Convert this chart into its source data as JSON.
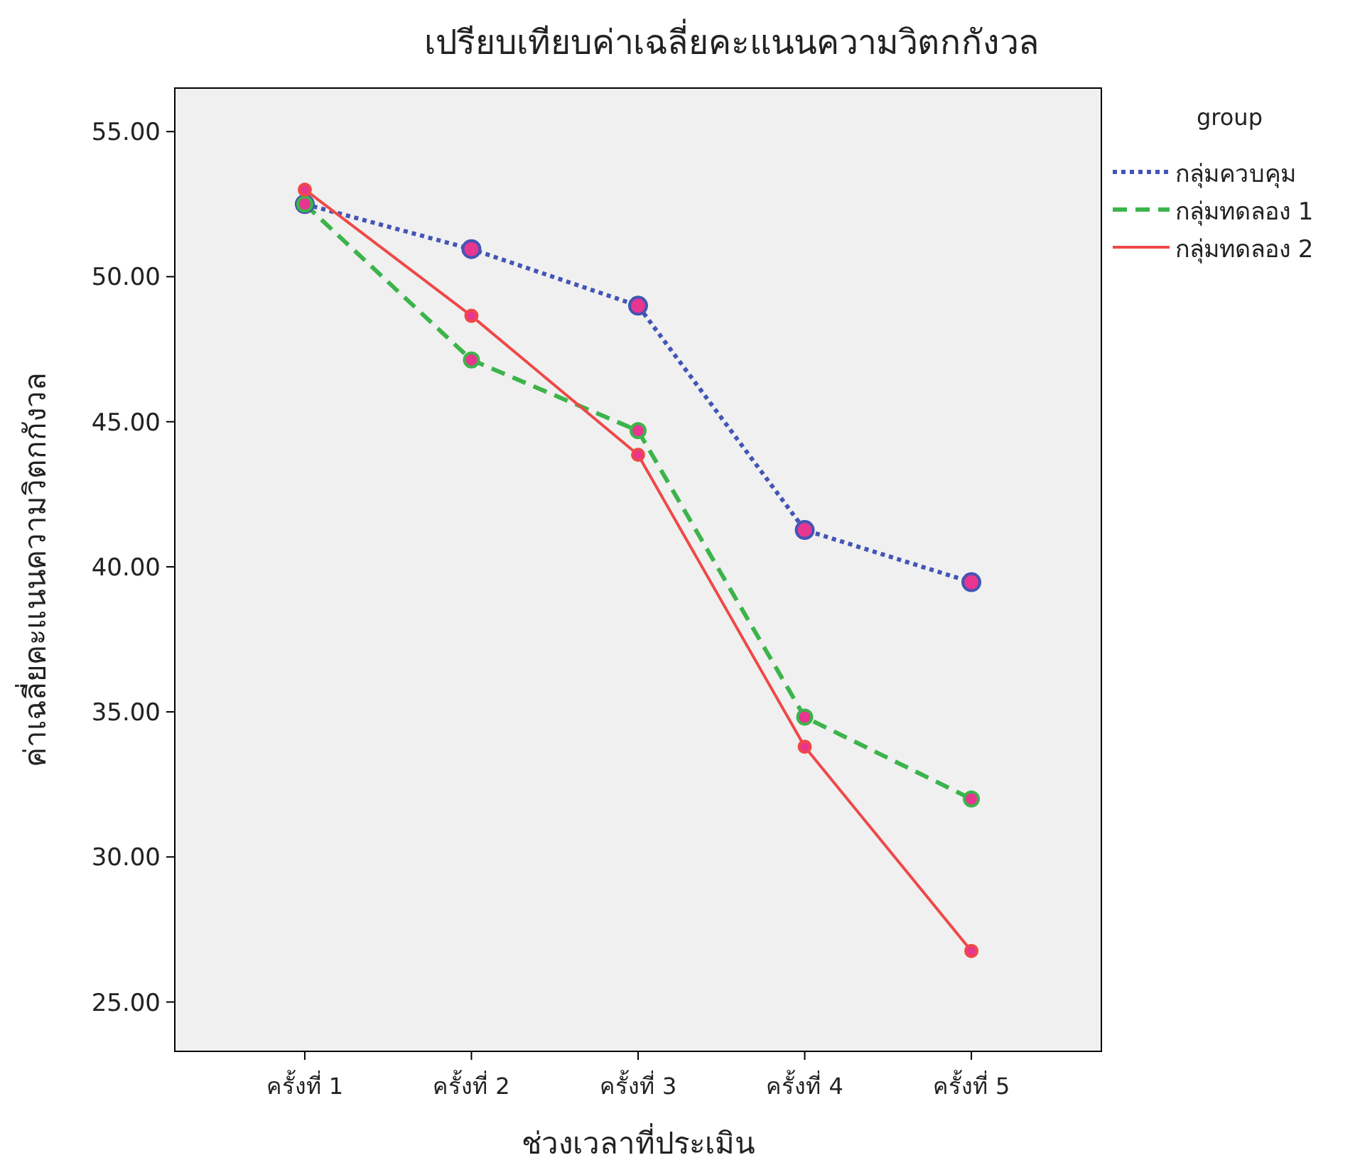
{
  "chart_data": {
    "type": "line",
    "title": "เปรียบเทียบค่าเฉลี่ยคะแนนความวิตกกังวล",
    "xlabel": "ช่วงเวลาที่ประเมิน",
    "ylabel": "ค่าเฉลี่ยคะแนนความวิตกกังวล",
    "legend_title": "group",
    "categories": [
      "ครั้งที่ 1",
      "ครั้งที่ 2",
      "ครั้งที่ 3",
      "ครั้งที่ 4",
      "ครั้งที่ 5"
    ],
    "series": [
      {
        "name": "กลุ่มควบคุม",
        "color": "#4355b5",
        "line_style": "dotted",
        "values": [
          52.5,
          50.95,
          49.0,
          41.27,
          39.47
        ]
      },
      {
        "name": "กลุ่มทดลอง 1",
        "color": "#3cb44b",
        "line_style": "dashed",
        "values": [
          52.5,
          47.13,
          44.69,
          34.82,
          32.0
        ]
      },
      {
        "name": "กลุ่มทดลอง 2",
        "color": "#f04848",
        "line_style": "solid",
        "values": [
          53.0,
          48.65,
          43.86,
          33.8,
          26.76
        ]
      }
    ],
    "ylim": [
      23.3,
      56.5
    ],
    "yticks": [
      {
        "value": 25,
        "label": "25.00"
      },
      {
        "value": 30,
        "label": "30.00"
      },
      {
        "value": 35,
        "label": "35.00"
      },
      {
        "value": 40,
        "label": "40.00"
      },
      {
        "value": 45,
        "label": "45.00"
      },
      {
        "value": 50,
        "label": "50.00"
      },
      {
        "value": 55,
        "label": "55.00"
      }
    ],
    "grid": false,
    "legend": "right",
    "marker": "circle"
  }
}
